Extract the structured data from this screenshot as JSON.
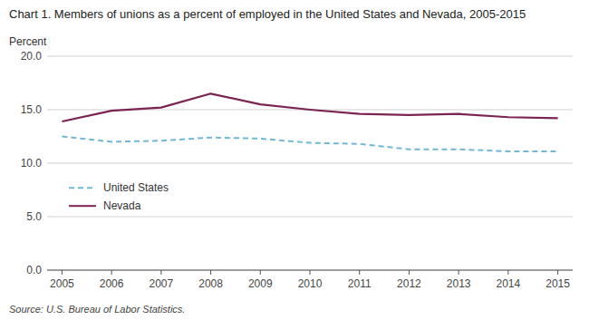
{
  "chart_data": {
    "type": "line",
    "title": "Chart 1. Members of unions as a percent of employed in the United States and Nevada, 2005-2015",
    "y_label": "Percent",
    "source": "Source: U.S. Bureau of Labor Statistics.",
    "x": [
      2005,
      2006,
      2007,
      2008,
      2009,
      2010,
      2011,
      2012,
      2013,
      2014,
      2015
    ],
    "xlim": [
      2004.7,
      2015.3
    ],
    "xticks": [
      2005,
      2006,
      2007,
      2008,
      2009,
      2010,
      2011,
      2012,
      2013,
      2014,
      2015
    ],
    "ylim": [
      0.0,
      20.0
    ],
    "yticks": [
      {
        "value": 0.0,
        "label": "0.0"
      },
      {
        "value": 5.0,
        "label": "5.0"
      },
      {
        "value": 10.0,
        "label": "10.0"
      },
      {
        "value": 15.0,
        "label": "15.0"
      },
      {
        "value": 20.0,
        "label": "20.0"
      }
    ],
    "grid": true,
    "legend": "lower left",
    "series": [
      {
        "name": "United States",
        "color": "#70b8d4",
        "line_style": "dashed",
        "values": [
          12.5,
          12.0,
          12.1,
          12.4,
          12.3,
          11.9,
          11.8,
          11.3,
          11.3,
          11.1,
          11.1
        ]
      },
      {
        "name": "Nevada",
        "color": "#7b2452",
        "line_style": "solid",
        "values": [
          13.9,
          14.9,
          15.2,
          16.5,
          15.5,
          15.0,
          14.6,
          14.5,
          14.6,
          14.3,
          14.2
        ]
      }
    ]
  }
}
